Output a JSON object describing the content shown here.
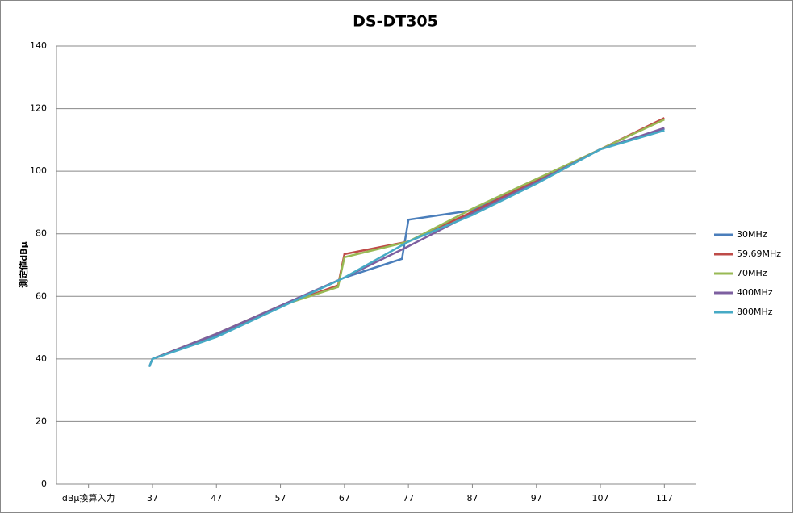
{
  "chart_data": {
    "type": "line",
    "title": "DS-DT305",
    "y_label": "測定値dBμ",
    "xlim": [
      22,
      122
    ],
    "xticks": [
      {
        "value": 27,
        "label": "dBμ換算入力"
      },
      37,
      47,
      57,
      67,
      77,
      87,
      97,
      107,
      117
    ],
    "ylim": [
      0,
      140
    ],
    "yticks": [
      0,
      20,
      40,
      60,
      80,
      100,
      120,
      140
    ],
    "grid": true,
    "legend": "right",
    "series": [
      {
        "name": "30MHz",
        "color": "#4a7ebb",
        "x": [
          37,
          47,
          57,
          67,
          76,
          77,
          87,
          97,
          107,
          117
        ],
        "values": [
          40,
          47.5,
          57,
          66,
          72,
          84.5,
          87.5,
          97,
          107,
          113.5
        ]
      },
      {
        "name": "59.69MHz",
        "color": "#be4b48",
        "x": [
          37,
          47,
          57,
          66,
          67,
          77,
          87,
          97,
          107,
          117
        ],
        "values": [
          40,
          48,
          57,
          63.5,
          73.5,
          77.5,
          87,
          97,
          107,
          117
        ]
      },
      {
        "name": "70MHz",
        "color": "#98b954",
        "x": [
          37,
          47,
          57,
          66,
          67,
          77,
          87,
          97,
          107,
          117
        ],
        "values": [
          40,
          48,
          57,
          63,
          72.5,
          77.5,
          88,
          97.5,
          107,
          116.5
        ]
      },
      {
        "name": "400MHz",
        "color": "#7d5fa0",
        "x": [
          36.5,
          37,
          47,
          57,
          67,
          77,
          87,
          97,
          107,
          117
        ],
        "values": [
          37.5,
          40,
          48,
          57,
          66,
          76,
          86.5,
          96.5,
          107,
          113.8
        ]
      },
      {
        "name": "800MHz",
        "color": "#46aac5",
        "x": [
          36.5,
          37,
          47,
          57,
          67,
          77,
          87,
          97,
          107,
          117
        ],
        "values": [
          37.5,
          40,
          47,
          56.5,
          66,
          77.5,
          86,
          96,
          107,
          113
        ]
      }
    ]
  }
}
